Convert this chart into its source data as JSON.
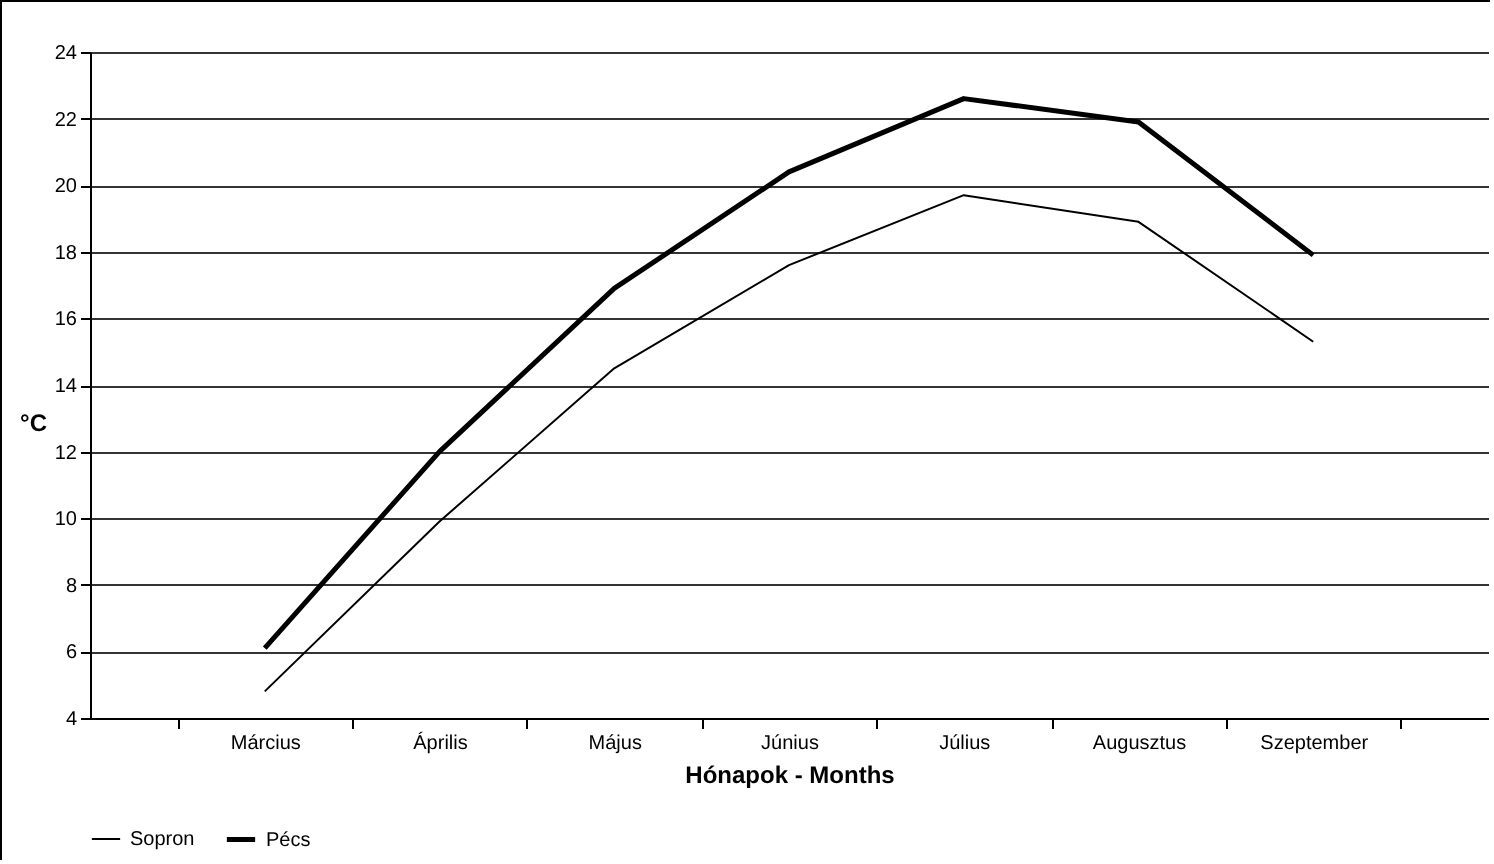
{
  "chart_data": {
    "type": "line",
    "xlabel": "Hónapok - Months",
    "ylabel": "°C",
    "categories": [
      "Március",
      "Április",
      "Május",
      "Június",
      "Július",
      "Augusztus",
      "Szeptember"
    ],
    "series": [
      {
        "name": "Sopron",
        "color": "#000000",
        "values": [
          4.8,
          9.9,
          14.5,
          17.6,
          19.7,
          18.9,
          15.3
        ]
      },
      {
        "name": "Pécs",
        "color": "#000000",
        "values": [
          6.1,
          12.0,
          16.9,
          20.4,
          22.6,
          21.9,
          17.9
        ]
      }
    ],
    "ylim": [
      4,
      24
    ],
    "yticks": [
      4,
      6,
      8,
      10,
      12,
      14,
      16,
      18,
      20,
      22,
      24
    ],
    "grid": "y",
    "legend": "bottom",
    "marker": "none",
    "line_style": "solid"
  }
}
